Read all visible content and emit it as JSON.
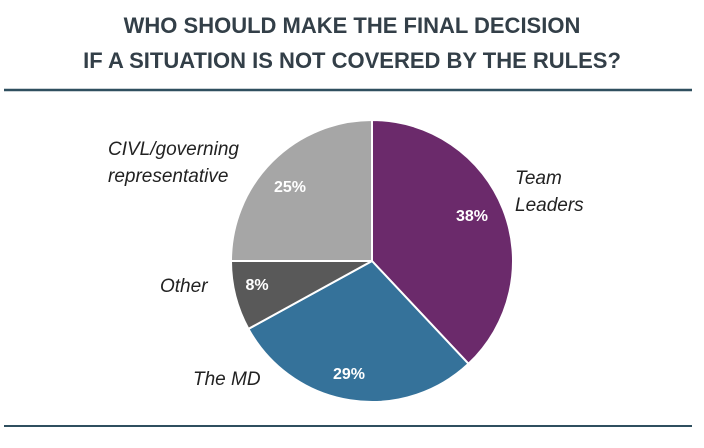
{
  "chart_data": {
    "type": "pie",
    "title": [
      "WHO SHOULD MAKE THE FINAL DECISION",
      "IF A SITUATION IS NOT COVERED BY THE RULES?"
    ],
    "categories": [
      "Team Leaders",
      "The MD",
      "Other",
      "CIVL/governing representative"
    ],
    "values": [
      38,
      29,
      8,
      25
    ],
    "value_labels": [
      "38%",
      "29%",
      "8%",
      "25%"
    ],
    "colors": [
      "#6b2a6b",
      "#35729a",
      "#595959",
      "#a6a6a6"
    ]
  }
}
